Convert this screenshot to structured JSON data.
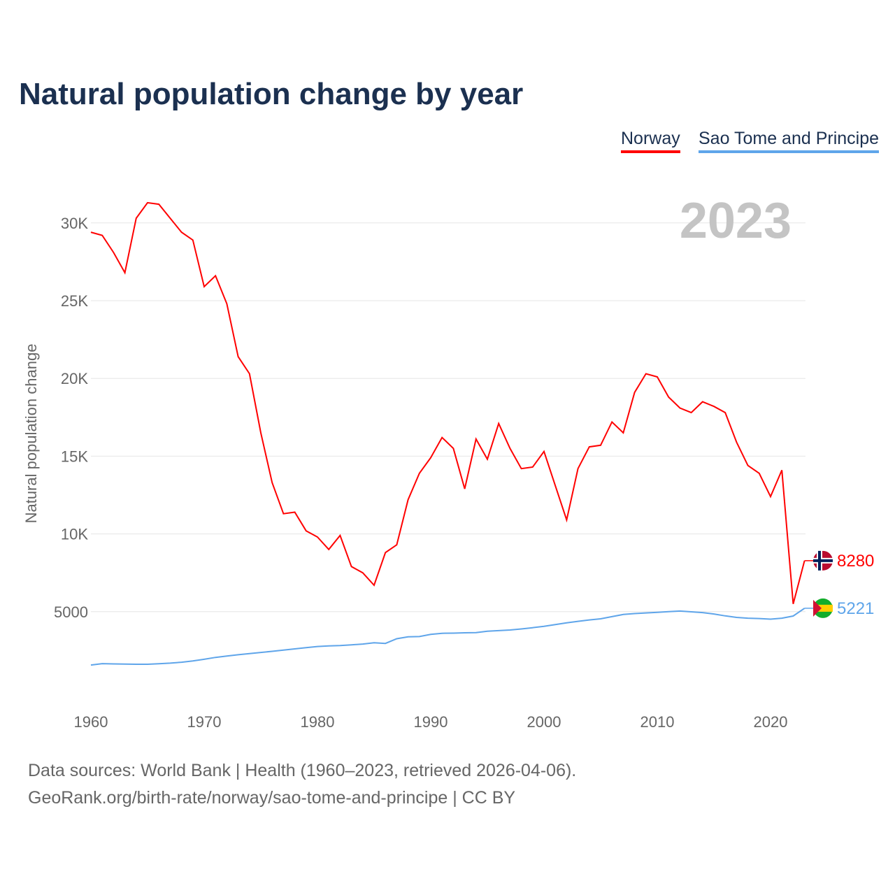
{
  "chart_data": {
    "type": "line",
    "title": "Natural population change by year",
    "ylabel": "Natural population change",
    "xlabel": "",
    "year_label": "2023",
    "ylim": [
      0,
      32000
    ],
    "xlim": [
      1960,
      2023
    ],
    "x_ticks": [
      "1960",
      "1970",
      "1980",
      "1990",
      "2000",
      "2010",
      "2020"
    ],
    "y_ticks": [
      {
        "v": 5000,
        "label": "5000"
      },
      {
        "v": 10000,
        "label": "10K"
      },
      {
        "v": 15000,
        "label": "15K"
      },
      {
        "v": 20000,
        "label": "20K"
      },
      {
        "v": 25000,
        "label": "25K"
      },
      {
        "v": 30000,
        "label": "30K"
      }
    ],
    "grid": true,
    "legend_position": "top-right",
    "x": [
      1960,
      1961,
      1962,
      1963,
      1964,
      1965,
      1966,
      1967,
      1968,
      1969,
      1970,
      1971,
      1972,
      1973,
      1974,
      1975,
      1976,
      1977,
      1978,
      1979,
      1980,
      1981,
      1982,
      1983,
      1984,
      1985,
      1986,
      1987,
      1988,
      1989,
      1990,
      1991,
      1992,
      1993,
      1994,
      1995,
      1996,
      1997,
      1998,
      1999,
      2000,
      2001,
      2002,
      2003,
      2004,
      2005,
      2006,
      2007,
      2008,
      2009,
      2010,
      2011,
      2012,
      2013,
      2014,
      2015,
      2016,
      2017,
      2018,
      2019,
      2020,
      2021,
      2022,
      2023
    ],
    "series": [
      {
        "name": "Norway",
        "color": "#ff0000",
        "end_label": "8280",
        "values": [
          29400,
          29200,
          28100,
          26800,
          30300,
          31300,
          31200,
          30300,
          29400,
          28900,
          25900,
          26600,
          24800,
          21400,
          20300,
          16500,
          13300,
          11300,
          11400,
          10200,
          9800,
          9000,
          9900,
          7900,
          7500,
          6700,
          8800,
          9300,
          12200,
          13900,
          14900,
          16200,
          15500,
          12900,
          16100,
          14800,
          17100,
          15500,
          14200,
          14300,
          15300,
          13100,
          10900,
          14200,
          15600,
          15700,
          17200,
          16500,
          19100,
          20300,
          20100,
          18800,
          18100,
          17800,
          18500,
          18200,
          17800,
          15900,
          14400,
          13900,
          12400,
          14100,
          5500,
          8280
        ]
      },
      {
        "name": "Sao Tome and Principe",
        "color": "#5fa5ea",
        "end_label": "5221",
        "values": [
          1570,
          1660,
          1640,
          1630,
          1620,
          1620,
          1650,
          1690,
          1750,
          1830,
          1940,
          2060,
          2150,
          2230,
          2300,
          2380,
          2450,
          2530,
          2610,
          2690,
          2760,
          2800,
          2820,
          2870,
          2920,
          3000,
          2960,
          3260,
          3380,
          3400,
          3540,
          3610,
          3620,
          3640,
          3650,
          3740,
          3780,
          3820,
          3890,
          3970,
          4060,
          4170,
          4280,
          4380,
          4470,
          4540,
          4680,
          4820,
          4880,
          4920,
          4960,
          5000,
          5040,
          4990,
          4940,
          4850,
          4730,
          4630,
          4580,
          4560,
          4520,
          4580,
          4720,
          5221
        ]
      }
    ]
  },
  "footer": {
    "line1": "Data sources: World Bank | Health (1960–2023, retrieved 2026-04-06).",
    "line2": "GeoRank.org/birth-rate/norway/sao-tome-and-principe | CC BY"
  }
}
